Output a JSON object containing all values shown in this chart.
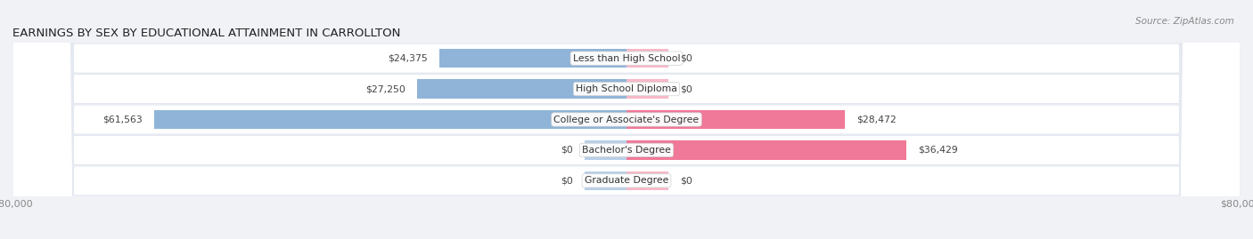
{
  "title": "EARNINGS BY SEX BY EDUCATIONAL ATTAINMENT IN CARROLLTON",
  "source": "Source: ZipAtlas.com",
  "categories": [
    "Less than High School",
    "High School Diploma",
    "College or Associate's Degree",
    "Bachelor's Degree",
    "Graduate Degree"
  ],
  "male_values": [
    24375,
    27250,
    61563,
    0,
    0
  ],
  "female_values": [
    0,
    0,
    28472,
    36429,
    0
  ],
  "male_color": "#8fb4d8",
  "female_color": "#f07898",
  "male_stub_color": "#b8cfe8",
  "female_stub_color": "#f8b8c8",
  "axis_max": 80000,
  "stub_size": 5500,
  "bar_height": 0.62,
  "background_color": "#f0f2f6",
  "row_bg_color": "#e4e8f0",
  "row_bg_light": "#eceef4",
  "label_color": "#333333",
  "value_label_color": "#444444",
  "title_color": "#222222",
  "source_color": "#888888",
  "legend_color": "#444444"
}
